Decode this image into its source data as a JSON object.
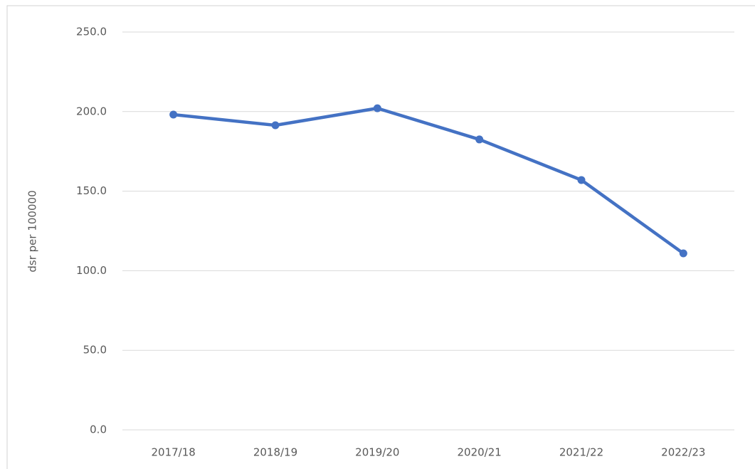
{
  "chart_data": {
    "type": "line",
    "y_label": "dsr per 100000",
    "categories": [
      "2017/18",
      "2018/19",
      "2019/20",
      "2020/21",
      "2021/22",
      "2022/23"
    ],
    "series": [
      {
        "name": "dsr per 100000",
        "color": "#4472c4",
        "values": [
          198.1,
          191.4,
          202.1,
          182.5,
          157.0,
          110.9
        ]
      }
    ],
    "ylim": [
      0,
      250
    ],
    "yticks": [
      {
        "value": 0,
        "label": "0.0"
      },
      {
        "value": 50,
        "label": "50.0"
      },
      {
        "value": 100,
        "label": "100.0"
      },
      {
        "value": 150,
        "label": "150.0"
      },
      {
        "value": 200,
        "label": "200.0"
      },
      {
        "value": 250,
        "label": "250.0"
      }
    ],
    "grid": true
  }
}
